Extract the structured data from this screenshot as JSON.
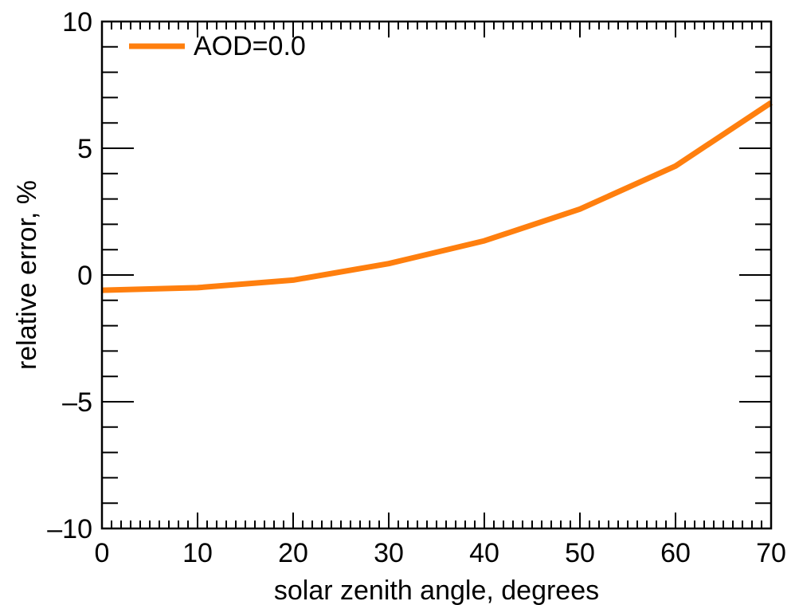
{
  "chart_data": {
    "type": "line",
    "title": "",
    "xlabel": "solar zenith angle, degrees",
    "ylabel": "relative error, %",
    "xlim": [
      0,
      70
    ],
    "ylim": [
      -10,
      10
    ],
    "x_ticks": [
      0,
      10,
      20,
      30,
      40,
      50,
      60,
      70
    ],
    "x_tick_labels": [
      "0",
      "10",
      "20",
      "30",
      "40",
      "50",
      "60",
      "70"
    ],
    "y_ticks": [
      -10,
      -5,
      0,
      5,
      10
    ],
    "y_tick_labels": [
      "–10",
      "–5",
      "0",
      "5",
      "10"
    ],
    "x_minor_step": 1,
    "y_minor_step": 1,
    "grid": false,
    "legend_position": "top-left",
    "series": [
      {
        "name": "AOD=0.0",
        "color": "#ff7f0e",
        "x": [
          0,
          10,
          20,
          30,
          40,
          50,
          60,
          70
        ],
        "y": [
          -0.6,
          -0.5,
          -0.2,
          0.45,
          1.35,
          2.6,
          4.3,
          6.8
        ]
      }
    ]
  }
}
